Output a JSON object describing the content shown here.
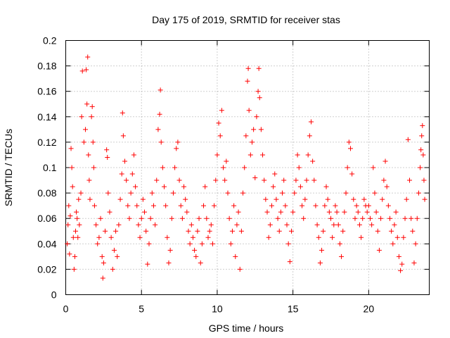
{
  "chart_data": {
    "type": "scatter",
    "title": "Day 175 of 2019, SRMTID for receiver stas",
    "xlabel": "GPS time / hours",
    "ylabel": "SRMTID / TECUs",
    "xlim": [
      0,
      24.0
    ],
    "ylim": [
      0,
      0.2
    ],
    "xticks": [
      0,
      5,
      10,
      15,
      20
    ],
    "xtick_labels": [
      "0",
      "5",
      "10",
      "15",
      "20"
    ],
    "yticks": [
      0,
      0.02,
      0.04,
      0.06,
      0.08,
      0.1,
      0.12,
      0.14,
      0.16,
      0.18,
      0.2
    ],
    "ytick_labels": [
      "0",
      "0.02",
      "0.04",
      "0.06",
      "0.08",
      "0.1",
      "0.12",
      "0.14",
      "0.16",
      "0.18",
      "0.2"
    ],
    "grid": true,
    "marker": "+",
    "series_color": "#ff0000",
    "series": [
      {
        "name": "SRMTID",
        "points": [
          [
            0.1,
            0.04
          ],
          [
            0.15,
            0.055
          ],
          [
            0.2,
            0.07
          ],
          [
            0.25,
            0.032
          ],
          [
            0.3,
            0.062
          ],
          [
            0.35,
            0.115
          ],
          [
            0.4,
            0.1
          ],
          [
            0.45,
            0.085
          ],
          [
            0.5,
            0.045
          ],
          [
            0.55,
            0.02
          ],
          [
            0.6,
            0.03
          ],
          [
            0.65,
            0.05
          ],
          [
            0.7,
            0.065
          ],
          [
            0.75,
            0.06
          ],
          [
            0.8,
            0.045
          ],
          [
            0.85,
            0.075
          ],
          [
            0.9,
            0.055
          ],
          [
            1.0,
            0.08
          ],
          [
            1.05,
            0.14
          ],
          [
            1.1,
            0.176
          ],
          [
            1.2,
            0.12
          ],
          [
            1.3,
            0.13
          ],
          [
            1.35,
            0.177
          ],
          [
            1.4,
            0.15
          ],
          [
            1.45,
            0.187
          ],
          [
            1.5,
            0.11
          ],
          [
            1.55,
            0.09
          ],
          [
            1.6,
            0.075
          ],
          [
            1.7,
            0.14
          ],
          [
            1.75,
            0.148
          ],
          [
            1.8,
            0.12
          ],
          [
            1.85,
            0.1
          ],
          [
            1.9,
            0.07
          ],
          [
            2.0,
            0.055
          ],
          [
            2.1,
            0.04
          ],
          [
            2.2,
            0.045
          ],
          [
            2.3,
            0.06
          ],
          [
            2.4,
            0.03
          ],
          [
            2.45,
            0.013
          ],
          [
            2.5,
            0.025
          ],
          [
            2.6,
            0.05
          ],
          [
            2.7,
            0.114
          ],
          [
            2.75,
            0.108
          ],
          [
            2.8,
            0.08
          ],
          [
            2.9,
            0.065
          ],
          [
            3.0,
            0.045
          ],
          [
            3.1,
            0.02
          ],
          [
            3.2,
            0.035
          ],
          [
            3.3,
            0.05
          ],
          [
            3.4,
            0.03
          ],
          [
            3.5,
            0.055
          ],
          [
            3.6,
            0.075
          ],
          [
            3.7,
            0.095
          ],
          [
            3.75,
            0.143
          ],
          [
            3.8,
            0.125
          ],
          [
            3.9,
            0.105
          ],
          [
            4.0,
            0.09
          ],
          [
            4.1,
            0.07
          ],
          [
            4.2,
            0.06
          ],
          [
            4.3,
            0.08
          ],
          [
            4.4,
            0.095
          ],
          [
            4.5,
            0.11
          ],
          [
            4.6,
            0.085
          ],
          [
            4.7,
            0.07
          ],
          [
            4.8,
            0.055
          ],
          [
            4.9,
            0.045
          ],
          [
            5.0,
            0.06
          ],
          [
            5.1,
            0.075
          ],
          [
            5.2,
            0.065
          ],
          [
            5.3,
            0.05
          ],
          [
            5.4,
            0.024
          ],
          [
            5.5,
            0.04
          ],
          [
            5.6,
            0.06
          ],
          [
            5.7,
            0.08
          ],
          [
            5.8,
            0.07
          ],
          [
            5.9,
            0.055
          ],
          [
            6.0,
            0.09
          ],
          [
            6.1,
            0.13
          ],
          [
            6.2,
            0.142
          ],
          [
            6.25,
            0.161
          ],
          [
            6.3,
            0.12
          ],
          [
            6.4,
            0.1
          ],
          [
            6.5,
            0.085
          ],
          [
            6.6,
            0.07
          ],
          [
            6.7,
            0.045
          ],
          [
            6.8,
            0.025
          ],
          [
            6.9,
            0.035
          ],
          [
            7.0,
            0.06
          ],
          [
            7.1,
            0.08
          ],
          [
            7.2,
            0.1
          ],
          [
            7.3,
            0.115
          ],
          [
            7.4,
            0.12
          ],
          [
            7.5,
            0.09
          ],
          [
            7.6,
            0.07
          ],
          [
            7.7,
            0.06
          ],
          [
            7.8,
            0.085
          ],
          [
            7.9,
            0.075
          ],
          [
            8.0,
            0.065
          ],
          [
            8.1,
            0.05
          ],
          [
            8.2,
            0.04
          ],
          [
            8.3,
            0.055
          ],
          [
            8.4,
            0.045
          ],
          [
            8.5,
            0.035
          ],
          [
            8.6,
            0.03
          ],
          [
            8.7,
            0.05
          ],
          [
            8.8,
            0.06
          ],
          [
            8.9,
            0.025
          ],
          [
            9.0,
            0.04
          ],
          [
            9.1,
            0.07
          ],
          [
            9.2,
            0.085
          ],
          [
            9.3,
            0.06
          ],
          [
            9.4,
            0.045
          ],
          [
            9.5,
            0.05
          ],
          [
            9.6,
            0.055
          ],
          [
            9.7,
            0.04
          ],
          [
            9.8,
            0.07
          ],
          [
            9.9,
            0.09
          ],
          [
            10.0,
            0.11
          ],
          [
            10.1,
            0.135
          ],
          [
            10.2,
            0.125
          ],
          [
            10.3,
            0.145
          ],
          [
            10.4,
            0.1
          ],
          [
            10.5,
            0.09
          ],
          [
            10.6,
            0.105
          ],
          [
            10.7,
            0.08
          ],
          [
            10.8,
            0.06
          ],
          [
            10.9,
            0.04
          ],
          [
            11.0,
            0.05
          ],
          [
            11.1,
            0.07
          ],
          [
            11.2,
            0.03
          ],
          [
            11.3,
            0.055
          ],
          [
            11.4,
            0.065
          ],
          [
            11.5,
            0.02
          ],
          [
            11.6,
            0.05
          ],
          [
            11.7,
            0.08
          ],
          [
            11.8,
            0.1
          ],
          [
            11.9,
            0.125
          ],
          [
            12.0,
            0.168
          ],
          [
            12.05,
            0.178
          ],
          [
            12.1,
            0.145
          ],
          [
            12.2,
            0.11
          ],
          [
            12.3,
            0.12
          ],
          [
            12.4,
            0.13
          ],
          [
            12.5,
            0.092
          ],
          [
            12.6,
            0.14
          ],
          [
            12.7,
            0.16
          ],
          [
            12.75,
            0.178
          ],
          [
            12.8,
            0.155
          ],
          [
            12.9,
            0.13
          ],
          [
            13.0,
            0.11
          ],
          [
            13.1,
            0.09
          ],
          [
            13.2,
            0.075
          ],
          [
            13.3,
            0.065
          ],
          [
            13.4,
            0.045
          ],
          [
            13.5,
            0.055
          ],
          [
            13.6,
            0.07
          ],
          [
            13.7,
            0.085
          ],
          [
            13.8,
            0.095
          ],
          [
            13.9,
            0.075
          ],
          [
            14.0,
            0.06
          ],
          [
            14.1,
            0.05
          ],
          [
            14.2,
            0.065
          ],
          [
            14.3,
            0.08
          ],
          [
            14.4,
            0.09
          ],
          [
            14.5,
            0.07
          ],
          [
            14.6,
            0.055
          ],
          [
            14.7,
            0.04
          ],
          [
            14.8,
            0.026
          ],
          [
            14.9,
            0.05
          ],
          [
            15.0,
            0.065
          ],
          [
            15.1,
            0.08
          ],
          [
            15.2,
            0.09
          ],
          [
            15.3,
            0.11
          ],
          [
            15.4,
            0.1
          ],
          [
            15.5,
            0.085
          ],
          [
            15.6,
            0.07
          ],
          [
            15.7,
            0.06
          ],
          [
            15.8,
            0.075
          ],
          [
            15.9,
            0.09
          ],
          [
            16.0,
            0.11
          ],
          [
            16.1,
            0.125
          ],
          [
            16.2,
            0.136
          ],
          [
            16.3,
            0.105
          ],
          [
            16.4,
            0.09
          ],
          [
            16.5,
            0.07
          ],
          [
            16.6,
            0.055
          ],
          [
            16.7,
            0.045
          ],
          [
            16.8,
            0.025
          ],
          [
            16.9,
            0.035
          ],
          [
            17.0,
            0.05
          ],
          [
            17.1,
            0.07
          ],
          [
            17.2,
            0.085
          ],
          [
            17.3,
            0.075
          ],
          [
            17.4,
            0.065
          ],
          [
            17.5,
            0.06
          ],
          [
            17.6,
            0.045
          ],
          [
            17.7,
            0.055
          ],
          [
            17.8,
            0.07
          ],
          [
            17.9,
            0.065
          ],
          [
            18.0,
            0.055
          ],
          [
            18.1,
            0.04
          ],
          [
            18.2,
            0.03
          ],
          [
            18.3,
            0.05
          ],
          [
            18.4,
            0.065
          ],
          [
            18.5,
            0.08
          ],
          [
            18.6,
            0.1
          ],
          [
            18.7,
            0.12
          ],
          [
            18.8,
            0.115
          ],
          [
            18.9,
            0.095
          ],
          [
            19.0,
            0.075
          ],
          [
            19.1,
            0.06
          ],
          [
            19.2,
            0.07
          ],
          [
            19.3,
            0.065
          ],
          [
            19.4,
            0.055
          ],
          [
            19.5,
            0.045
          ],
          [
            19.6,
            0.06
          ],
          [
            19.7,
            0.075
          ],
          [
            19.8,
            0.07
          ],
          [
            19.9,
            0.065
          ],
          [
            20.0,
            0.07
          ],
          [
            20.1,
            0.06
          ],
          [
            20.2,
            0.055
          ],
          [
            20.3,
            0.1
          ],
          [
            20.4,
            0.08
          ],
          [
            20.5,
            0.065
          ],
          [
            20.6,
            0.05
          ],
          [
            20.7,
            0.035
          ],
          [
            20.8,
            0.06
          ],
          [
            20.9,
            0.075
          ],
          [
            21.0,
            0.09
          ],
          [
            21.1,
            0.105
          ],
          [
            21.2,
            0.085
          ],
          [
            21.3,
            0.07
          ],
          [
            21.4,
            0.06
          ],
          [
            21.5,
            0.05
          ],
          [
            21.6,
            0.04
          ],
          [
            21.7,
            0.055
          ],
          [
            21.8,
            0.065
          ],
          [
            21.9,
            0.045
          ],
          [
            22.0,
            0.03
          ],
          [
            22.1,
            0.019
          ],
          [
            22.2,
            0.024
          ],
          [
            22.3,
            0.045
          ],
          [
            22.4,
            0.06
          ],
          [
            22.5,
            0.075
          ],
          [
            22.6,
            0.122
          ],
          [
            22.7,
            0.09
          ],
          [
            22.8,
            0.06
          ],
          [
            22.9,
            0.05
          ],
          [
            23.0,
            0.025
          ],
          [
            23.1,
            0.04
          ],
          [
            23.2,
            0.06
          ],
          [
            23.3,
            0.08
          ],
          [
            23.4,
            0.1
          ],
          [
            23.45,
            0.114
          ],
          [
            23.5,
            0.125
          ],
          [
            23.55,
            0.133
          ],
          [
            23.6,
            0.11
          ],
          [
            23.65,
            0.09
          ],
          [
            23.7,
            0.075
          ]
        ]
      }
    ]
  }
}
